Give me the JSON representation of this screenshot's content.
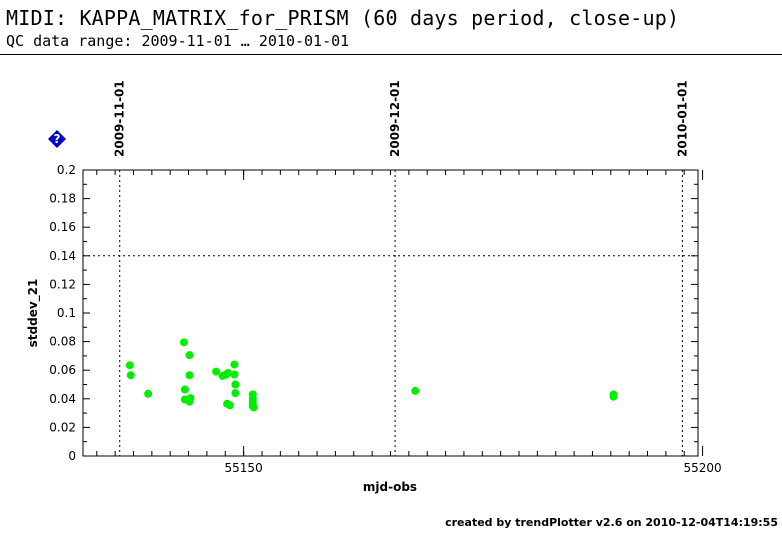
{
  "header": {
    "title": "MIDI: KAPPA_MATRIX_for_PRISM (60 days period, close-up)",
    "subtitle": "QC data range: 2009-11-01 … 2010-01-01"
  },
  "footer": {
    "credit": "created by trendPlotter v2.6 on 2010-12-04T14:19:55"
  },
  "help_icon": {
    "name": "help-icon",
    "glyph": "?",
    "color": "#0000cc"
  },
  "chart_data": {
    "type": "scatter",
    "title": "",
    "xlabel": "mjd-obs",
    "ylabel": "stddev_21",
    "xlim": [
      55132.5,
      55199.5
    ],
    "ylim": [
      0,
      0.2
    ],
    "x_tick_labels": [
      {
        "value": 55150,
        "label": "55150"
      },
      {
        "value": 55200,
        "label": "55200"
      }
    ],
    "x_minor_ticks": [
      55134,
      55136,
      55138,
      55140,
      55142,
      55144,
      55146,
      55148,
      55150,
      55152,
      55154,
      55156,
      55158,
      55160,
      55162,
      55164,
      55166,
      55168,
      55170,
      55172,
      55174,
      55176,
      55178,
      55180,
      55182,
      55184,
      55186,
      55188,
      55190,
      55192,
      55194,
      55196,
      55198
    ],
    "y_ticks": [
      {
        "value": 0,
        "label": "0"
      },
      {
        "value": 0.02,
        "label": "0.02"
      },
      {
        "value": 0.04,
        "label": "0.04"
      },
      {
        "value": 0.06,
        "label": "0.06"
      },
      {
        "value": 0.08,
        "label": "0.08"
      },
      {
        "value": 0.1,
        "label": "0.1"
      },
      {
        "value": 0.12,
        "label": "0.12"
      },
      {
        "value": 0.14,
        "label": "0.14"
      },
      {
        "value": 0.16,
        "label": "0.16"
      },
      {
        "value": 0.18,
        "label": "0.18"
      },
      {
        "value": 0.2,
        "label": "0.2"
      }
    ],
    "date_markers": [
      {
        "x": 55136.5,
        "label": "2009-11-01"
      },
      {
        "x": 55166.5,
        "label": "2009-12-01"
      },
      {
        "x": 55197.8,
        "label": "2010-01-01"
      }
    ],
    "threshold_line": {
      "y": 0.14,
      "style": "dotted"
    },
    "grid": false,
    "marker_color": "#00ee00",
    "series": [
      {
        "x": [
          55137.6,
          55137.7,
          55139.6,
          55143.5,
          55143.6,
          55143.6,
          55144.1,
          55144.1,
          55144.2,
          55144.1,
          55147.0,
          55147.7,
          55148.1,
          55148.3,
          55148.2,
          55148.5,
          55149.0,
          55149.0,
          55149.1,
          55149.1,
          55151.0,
          55151.0,
          55151.0,
          55151.1,
          55151.0,
          55151.0,
          55168.7,
          55190.3,
          55190.3
        ],
        "y": [
          0.0635,
          0.0565,
          0.0435,
          0.0795,
          0.0465,
          0.0395,
          0.0705,
          0.0565,
          0.0405,
          0.038,
          0.059,
          0.056,
          0.057,
          0.058,
          0.0365,
          0.0355,
          0.064,
          0.057,
          0.05,
          0.044,
          0.043,
          0.04,
          0.038,
          0.034,
          0.036,
          0.035,
          0.0455,
          0.043,
          0.0415
        ]
      }
    ]
  }
}
